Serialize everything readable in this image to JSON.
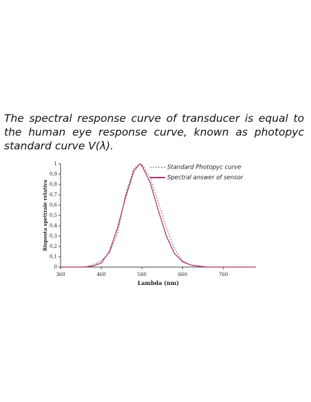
{
  "text": {
    "paragraph": "The spectral response curve of transducer is equal to the human eye response curve, known as photopyc standard curve V(λ)."
  },
  "chart_data": {
    "type": "line",
    "xlabel": "Lambda (nm)",
    "ylabel": "Risposta spettrale relativa",
    "x": [
      360,
      400,
      420,
      440,
      460,
      480,
      500,
      520,
      540,
      555,
      560,
      580,
      600,
      620,
      640,
      660,
      680,
      700,
      720,
      760,
      800,
      840
    ],
    "series": [
      {
        "name": "Standard Photopyc curve",
        "color": "#555555",
        "dashed": true,
        "values": [
          0,
          0,
          0.004,
          0.023,
          0.06,
          0.139,
          0.323,
          0.71,
          0.954,
          1,
          0.995,
          0.87,
          0.631,
          0.381,
          0.175,
          0.061,
          0.017,
          0.004,
          0.001,
          0,
          0,
          0
        ]
      },
      {
        "name": "Spectral answer of sensor",
        "color": "#b0306a",
        "dashed": false,
        "values": [
          0,
          0,
          0,
          0.01,
          0.04,
          0.15,
          0.38,
          0.68,
          0.93,
          1,
          0.98,
          0.82,
          0.55,
          0.3,
          0.13,
          0.05,
          0.02,
          0.01,
          0,
          0,
          0,
          0
        ]
      }
    ],
    "xlim": [
      360,
      840
    ],
    "xticks": [
      360,
      460,
      560,
      660,
      760
    ],
    "ylim": [
      0,
      1
    ],
    "yticks": [
      0,
      {
        "value": 0.1,
        "label": "0,1"
      },
      {
        "value": 0.2,
        "label": "0,2"
      },
      {
        "value": 0.3,
        "label": "0,3"
      },
      {
        "value": 0.4,
        "label": "0,4"
      },
      {
        "value": 0.5,
        "label": "0,5"
      },
      {
        "value": 0.6,
        "label": "0,6"
      },
      {
        "value": 0.7,
        "label": "0,7"
      },
      {
        "value": 0.8,
        "label": "0,8"
      },
      {
        "value": 0.9,
        "label": "0,9"
      },
      1
    ],
    "legend": "top-right"
  }
}
